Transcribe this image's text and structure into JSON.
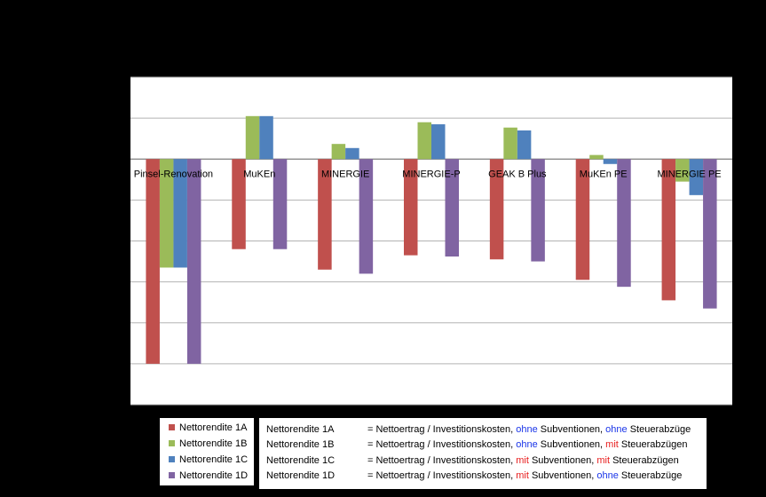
{
  "chart_data": {
    "type": "bar",
    "title": "",
    "xlabel": "",
    "ylabel": "",
    "ylim": [
      -6,
      2
    ],
    "grid": true,
    "categories": [
      "Pinsel-Renovation",
      "MuKEn",
      "MINERGIE",
      "MINERGIE-P",
      "GEAK B Plus",
      "MuKEn PE",
      "MINERGIE PE"
    ],
    "series": [
      {
        "name": "Nettorendite 1A",
        "color": "#c0504d",
        "values": [
          -5.0,
          -2.2,
          -2.7,
          -2.35,
          -2.45,
          -2.95,
          -3.45
        ]
      },
      {
        "name": "Nettorendite 1B",
        "color": "#9bbb59",
        "values": [
          -2.65,
          1.05,
          0.37,
          0.9,
          0.77,
          0.1,
          -0.55
        ]
      },
      {
        "name": "Nettorendite 1C",
        "color": "#4f81bd",
        "values": [
          -2.65,
          1.05,
          0.27,
          0.85,
          0.7,
          -0.12,
          -0.88
        ]
      },
      {
        "name": "Nettorendite 1D",
        "color": "#8064a2",
        "values": [
          -5.0,
          -2.2,
          -2.8,
          -2.38,
          -2.5,
          -3.12,
          -3.65
        ]
      }
    ]
  },
  "legend": {
    "items": [
      {
        "label": "Nettorendite 1A",
        "color": "#c0504d"
      },
      {
        "label": "Nettorendite 1B",
        "color": "#9bbb59"
      },
      {
        "label": "Nettorendite 1C",
        "color": "#4f81bd"
      },
      {
        "label": "Nettorendite 1D",
        "color": "#8064a2"
      }
    ]
  },
  "notes": [
    {
      "term": "Nettorendite 1A",
      "pre": "= Nettoertrag / Investitionskosten, ",
      "w1": "ohne",
      "w1c": "#1a35e8",
      "mid": " Subventionen, ",
      "w2": "ohne",
      "w2c": "#1a35e8",
      "post": " Steuerabzüge"
    },
    {
      "term": "Nettorendite 1B",
      "pre": "= Nettoertrag / Investitionskosten, ",
      "w1": "ohne",
      "w1c": "#1a35e8",
      "mid": " Subventionen, ",
      "w2": "mit",
      "w2c": "#e82020",
      "post": " Steuerabzügen"
    },
    {
      "term": "Nettorendite 1C",
      "pre": "= Nettoertrag / Investitionskosten, ",
      "w1": "mit",
      "w1c": "#e82020",
      "mid": " Subventionen, ",
      "w2": "mit",
      "w2c": "#e82020",
      "post": " Steuerabzügen"
    },
    {
      "term": "Nettorendite 1D",
      "pre": "= Nettoertrag / Investitionskosten, ",
      "w1": "mit",
      "w1c": "#e82020",
      "mid": " Subventionen, ",
      "w2": "ohne",
      "w2c": "#1a35e8",
      "post": " Steuerabzüge"
    }
  ]
}
